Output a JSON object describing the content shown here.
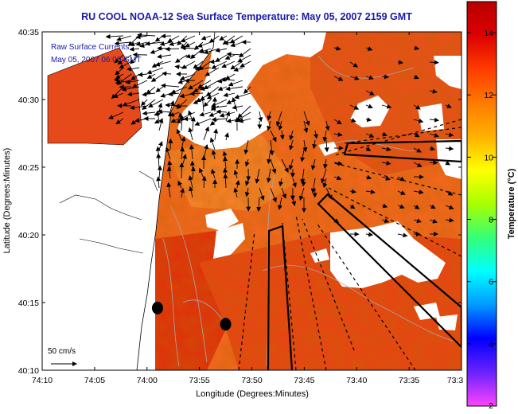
{
  "chart_data": {
    "type": "heatmap",
    "title": "RU COOL  NOAA-12  Sea Surface Temperature:  May 05, 2007 2159 GMT",
    "xlabel": "Longitude (Degrees:Minutes)",
    "ylabel": "Latitude (Degrees:Minutes)",
    "x_range_deg": [
      -74.1667,
      -73.5
    ],
    "y_range_deg": [
      40.1667,
      40.5833
    ],
    "x_ticks": [
      {
        "value": -74.1667,
        "label": "74:10"
      },
      {
        "value": -74.0833,
        "label": "74:05"
      },
      {
        "value": -74.0,
        "label": "74:00"
      },
      {
        "value": -73.9167,
        "label": "73:55"
      },
      {
        "value": -73.8333,
        "label": "73:50"
      },
      {
        "value": -73.75,
        "label": "73:45"
      },
      {
        "value": -73.6667,
        "label": "73:40"
      },
      {
        "value": -73.5833,
        "label": "73:35"
      },
      {
        "value": -73.5,
        "label": "73:3"
      }
    ],
    "y_ticks": [
      {
        "value": 40.1667,
        "label": "40:10"
      },
      {
        "value": 40.25,
        "label": "40:15"
      },
      {
        "value": 40.3333,
        "label": "40:20"
      },
      {
        "value": 40.4167,
        "label": "40:25"
      },
      {
        "value": 40.5,
        "label": "40:30"
      },
      {
        "value": 40.5833,
        "label": "40:35"
      }
    ],
    "legend_lines": [
      "Raw Surface Currents",
      "May 05, 2007 06:00 GMT"
    ],
    "scale_arrow_label": "50 cm/s",
    "colorbar": {
      "label": "Temperature (°C)",
      "range": [
        2,
        15
      ],
      "ticks": [
        2,
        4,
        6,
        8,
        10,
        12,
        14
      ],
      "stops": [
        "#ff44ff",
        "#6a22ff",
        "#0000ff",
        "#0099ff",
        "#00ffff",
        "#33ff77",
        "#aaff00",
        "#ffff00",
        "#ffb000",
        "#ff7a00",
        "#ff3b00",
        "#dd0000",
        "#b80000"
      ]
    },
    "sst_field_range_c": [
      12.0,
      14.0
    ],
    "masked_color": "#ffffff",
    "land_color": "#ffffff",
    "stations": [
      {
        "lon": -73.9833,
        "lat": 40.2433
      },
      {
        "lon": -73.875,
        "lat": 40.2233
      }
    ]
  }
}
